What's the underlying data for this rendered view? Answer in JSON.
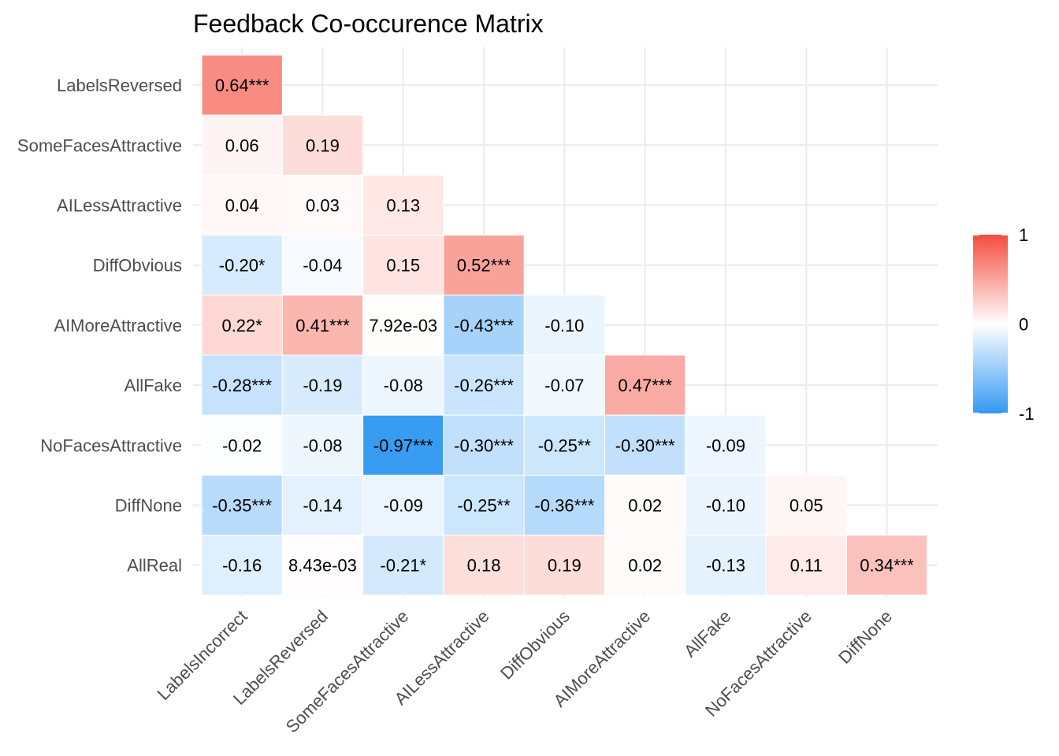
{
  "chart_data": {
    "type": "heatmap",
    "title": "Feedback Co-occurence Matrix",
    "xlabel": "",
    "ylabel": "",
    "x_categories": [
      "LabelsIncorrect",
      "LabelsReversed",
      "SomeFacesAttractive",
      "AILessAttractive",
      "DiffObvious",
      "AIMoreAttractive",
      "AllFake",
      "NoFacesAttractive",
      "DiffNone"
    ],
    "y_categories": [
      "LabelsReversed",
      "SomeFacesAttractive",
      "AILessAttractive",
      "DiffObvious",
      "AIMoreAttractive",
      "AllFake",
      "NoFacesAttractive",
      "DiffNone",
      "AllReal"
    ],
    "cells": [
      {
        "row": "LabelsReversed",
        "col": "LabelsIncorrect",
        "value": 0.64,
        "label": "0.64***"
      },
      {
        "row": "SomeFacesAttractive",
        "col": "LabelsIncorrect",
        "value": 0.06,
        "label": "0.06"
      },
      {
        "row": "SomeFacesAttractive",
        "col": "LabelsReversed",
        "value": 0.19,
        "label": "0.19"
      },
      {
        "row": "AILessAttractive",
        "col": "LabelsIncorrect",
        "value": 0.04,
        "label": "0.04"
      },
      {
        "row": "AILessAttractive",
        "col": "LabelsReversed",
        "value": 0.03,
        "label": "0.03"
      },
      {
        "row": "AILessAttractive",
        "col": "SomeFacesAttractive",
        "value": 0.13,
        "label": "0.13"
      },
      {
        "row": "DiffObvious",
        "col": "LabelsIncorrect",
        "value": -0.2,
        "label": "-0.20*"
      },
      {
        "row": "DiffObvious",
        "col": "LabelsReversed",
        "value": -0.04,
        "label": "-0.04"
      },
      {
        "row": "DiffObvious",
        "col": "SomeFacesAttractive",
        "value": 0.15,
        "label": "0.15"
      },
      {
        "row": "DiffObvious",
        "col": "AILessAttractive",
        "value": 0.52,
        "label": "0.52***"
      },
      {
        "row": "AIMoreAttractive",
        "col": "LabelsIncorrect",
        "value": 0.22,
        "label": "0.22*"
      },
      {
        "row": "AIMoreAttractive",
        "col": "LabelsReversed",
        "value": 0.41,
        "label": "0.41***"
      },
      {
        "row": "AIMoreAttractive",
        "col": "SomeFacesAttractive",
        "value": 0.00792,
        "label": "7.92e-03"
      },
      {
        "row": "AIMoreAttractive",
        "col": "AILessAttractive",
        "value": -0.43,
        "label": "-0.43***"
      },
      {
        "row": "AIMoreAttractive",
        "col": "DiffObvious",
        "value": -0.1,
        "label": "-0.10"
      },
      {
        "row": "AllFake",
        "col": "LabelsIncorrect",
        "value": -0.28,
        "label": "-0.28***"
      },
      {
        "row": "AllFake",
        "col": "LabelsReversed",
        "value": -0.19,
        "label": "-0.19"
      },
      {
        "row": "AllFake",
        "col": "SomeFacesAttractive",
        "value": -0.08,
        "label": "-0.08"
      },
      {
        "row": "AllFake",
        "col": "AILessAttractive",
        "value": -0.26,
        "label": "-0.26***"
      },
      {
        "row": "AllFake",
        "col": "DiffObvious",
        "value": -0.07,
        "label": "-0.07"
      },
      {
        "row": "AllFake",
        "col": "AIMoreAttractive",
        "value": 0.47,
        "label": "0.47***"
      },
      {
        "row": "NoFacesAttractive",
        "col": "LabelsIncorrect",
        "value": -0.02,
        "label": "-0.02"
      },
      {
        "row": "NoFacesAttractive",
        "col": "LabelsReversed",
        "value": -0.08,
        "label": "-0.08"
      },
      {
        "row": "NoFacesAttractive",
        "col": "SomeFacesAttractive",
        "value": -0.97,
        "label": "-0.97***"
      },
      {
        "row": "NoFacesAttractive",
        "col": "AILessAttractive",
        "value": -0.3,
        "label": "-0.30***"
      },
      {
        "row": "NoFacesAttractive",
        "col": "DiffObvious",
        "value": -0.25,
        "label": "-0.25**"
      },
      {
        "row": "NoFacesAttractive",
        "col": "AIMoreAttractive",
        "value": -0.3,
        "label": "-0.30***"
      },
      {
        "row": "NoFacesAttractive",
        "col": "AllFake",
        "value": -0.09,
        "label": "-0.09"
      },
      {
        "row": "DiffNone",
        "col": "LabelsIncorrect",
        "value": -0.35,
        "label": "-0.35***"
      },
      {
        "row": "DiffNone",
        "col": "LabelsReversed",
        "value": -0.14,
        "label": "-0.14"
      },
      {
        "row": "DiffNone",
        "col": "SomeFacesAttractive",
        "value": -0.09,
        "label": "-0.09"
      },
      {
        "row": "DiffNone",
        "col": "AILessAttractive",
        "value": -0.25,
        "label": "-0.25**"
      },
      {
        "row": "DiffNone",
        "col": "DiffObvious",
        "value": -0.36,
        "label": "-0.36***"
      },
      {
        "row": "DiffNone",
        "col": "AIMoreAttractive",
        "value": 0.02,
        "label": "0.02"
      },
      {
        "row": "DiffNone",
        "col": "AllFake",
        "value": -0.1,
        "label": "-0.10"
      },
      {
        "row": "DiffNone",
        "col": "NoFacesAttractive",
        "value": 0.05,
        "label": "0.05"
      },
      {
        "row": "AllReal",
        "col": "LabelsIncorrect",
        "value": -0.16,
        "label": "-0.16"
      },
      {
        "row": "AllReal",
        "col": "LabelsReversed",
        "value": 0.00843,
        "label": "8.43e-03"
      },
      {
        "row": "AllReal",
        "col": "SomeFacesAttractive",
        "value": -0.21,
        "label": "-0.21*"
      },
      {
        "row": "AllReal",
        "col": "AILessAttractive",
        "value": 0.18,
        "label": "0.18"
      },
      {
        "row": "AllReal",
        "col": "DiffObvious",
        "value": 0.19,
        "label": "0.19"
      },
      {
        "row": "AllReal",
        "col": "AIMoreAttractive",
        "value": 0.02,
        "label": "0.02"
      },
      {
        "row": "AllReal",
        "col": "AllFake",
        "value": -0.13,
        "label": "-0.13"
      },
      {
        "row": "AllReal",
        "col": "NoFacesAttractive",
        "value": 0.11,
        "label": "0.11"
      },
      {
        "row": "AllReal",
        "col": "DiffNone",
        "value": 0.34,
        "label": "0.34***"
      }
    ],
    "color_scale": {
      "low": "#3399f3",
      "mid": "#ffffff",
      "high": "#f44c3d",
      "min": -1,
      "max": 1,
      "tick_labels": [
        "1",
        "0",
        "-1"
      ]
    },
    "legend_position": "right",
    "grid": true
  }
}
